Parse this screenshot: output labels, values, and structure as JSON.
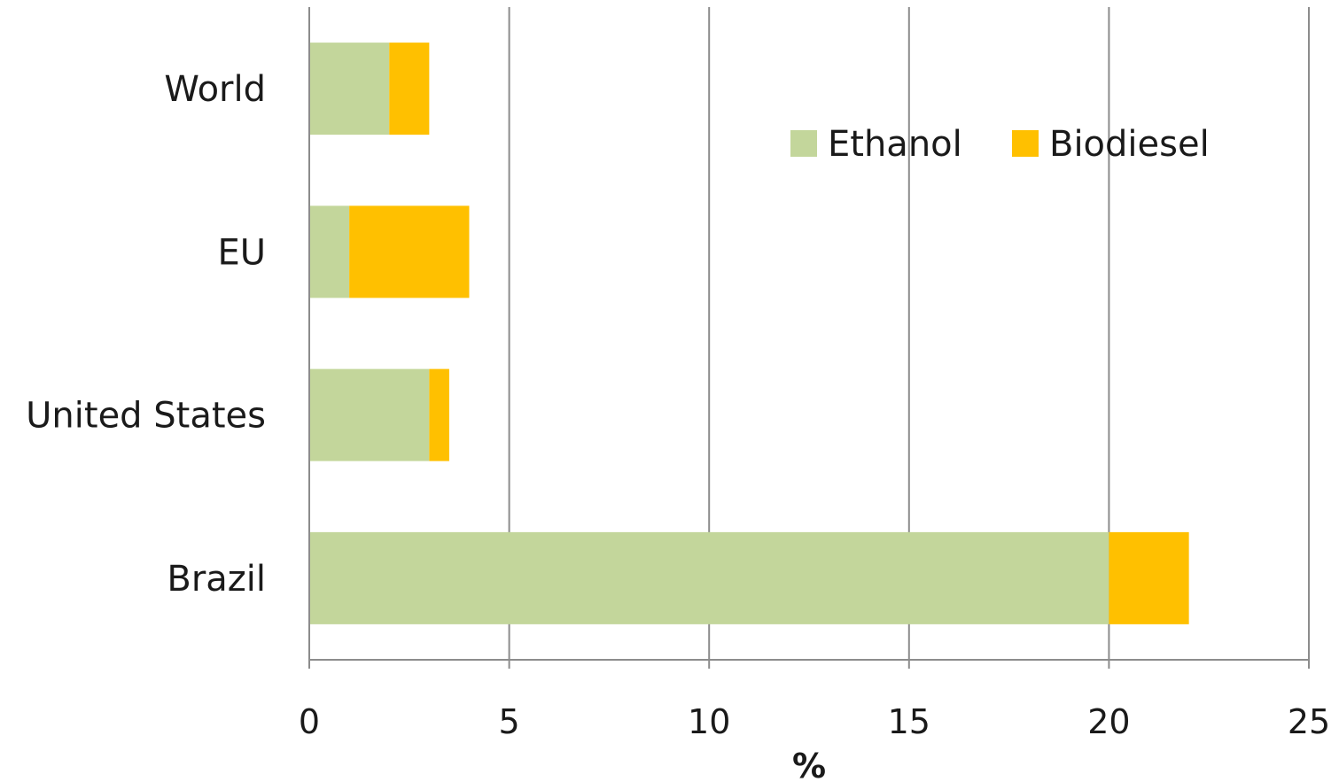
{
  "chart_data": {
    "type": "bar",
    "orientation": "horizontal",
    "stacked": true,
    "title": "",
    "xlabel": "%",
    "ylabel": "",
    "categories": [
      "World",
      "EU",
      "United States",
      "Brazil"
    ],
    "series": [
      {
        "name": "Ethanol",
        "color": "#c3d69b",
        "values": [
          2,
          1,
          3,
          20
        ]
      },
      {
        "name": "Biodiesel",
        "color": "#ffc000",
        "values": [
          1,
          3,
          0.5,
          2
        ]
      }
    ],
    "xlim": [
      0,
      25
    ],
    "xticks": [
      0,
      5,
      10,
      15,
      20,
      25
    ],
    "grid": "vertical",
    "legend_position": "top-right"
  }
}
